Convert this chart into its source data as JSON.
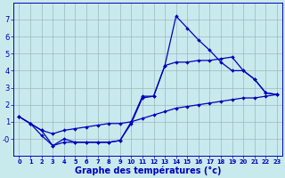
{
  "title": "Graphe des températures (°c)",
  "hours": [
    0,
    1,
    2,
    3,
    4,
    5,
    6,
    7,
    8,
    9,
    10,
    11,
    12,
    13,
    14,
    15,
    16,
    17,
    18,
    19,
    20,
    21,
    22,
    23
  ],
  "temp_upper": [
    1.3,
    0.9,
    0.5,
    -0.4,
    0.0,
    -0.2,
    -0.2,
    -0.2,
    -0.2,
    -0.1,
    1.0,
    2.5,
    2.5,
    4.3,
    7.2,
    6.5,
    5.8,
    5.2,
    4.5,
    4.0,
    4.0,
    3.5,
    2.7,
    2.6
  ],
  "temp_diag": [
    1.3,
    0.9,
    0.5,
    0.3,
    0.5,
    0.6,
    0.7,
    0.8,
    0.9,
    0.9,
    1.0,
    1.2,
    1.4,
    1.6,
    1.8,
    1.9,
    2.0,
    2.1,
    2.2,
    2.3,
    2.4,
    2.4,
    2.5,
    2.6
  ],
  "temp_lower": [
    1.3,
    0.9,
    0.2,
    -0.4,
    -0.2,
    -0.2,
    -0.2,
    -0.2,
    -0.2,
    -0.1,
    0.9,
    2.4,
    2.5,
    4.3,
    4.5,
    4.5,
    4.6,
    4.6,
    4.7,
    4.8,
    4.0,
    3.5,
    2.7,
    2.6
  ],
  "line_color": "#0000bb",
  "bg_color": "#c8eaed",
  "grid_color": "#9ab8be",
  "ylim": [
    -1,
    8
  ],
  "xlim_min": -0.5,
  "xlim_max": 23.5,
  "figw": 3.2,
  "figh": 2.0,
  "dpi": 100
}
